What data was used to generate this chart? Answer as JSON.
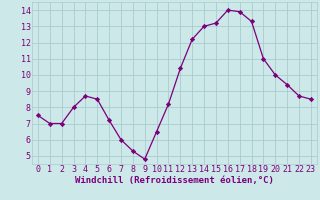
{
  "x": [
    0,
    1,
    2,
    3,
    4,
    5,
    6,
    7,
    8,
    9,
    10,
    11,
    12,
    13,
    14,
    15,
    16,
    17,
    18,
    19,
    20,
    21,
    22,
    23
  ],
  "y": [
    7.5,
    7.0,
    7.0,
    8.0,
    8.7,
    8.5,
    7.2,
    6.0,
    5.3,
    4.8,
    6.5,
    8.2,
    10.4,
    12.2,
    13.0,
    13.2,
    14.0,
    13.9,
    13.3,
    11.0,
    10.0,
    9.4,
    8.7,
    8.5
  ],
  "line_color": "#7b007b",
  "marker": "D",
  "marker_size": 2.2,
  "bg_color": "#cce8e8",
  "grid_color": "#aacccc",
  "xlabel": "Windchill (Refroidissement éolien,°C)",
  "xlabel_fontsize": 6.5,
  "xlim": [
    -0.5,
    23.5
  ],
  "ylim": [
    4.5,
    14.5
  ],
  "yticks": [
    5,
    6,
    7,
    8,
    9,
    10,
    11,
    12,
    13,
    14
  ],
  "xticks": [
    0,
    1,
    2,
    3,
    4,
    5,
    6,
    7,
    8,
    9,
    10,
    11,
    12,
    13,
    14,
    15,
    16,
    17,
    18,
    19,
    20,
    21,
    22,
    23
  ],
  "tick_fontsize": 6.0,
  "tick_color": "#7b007b"
}
